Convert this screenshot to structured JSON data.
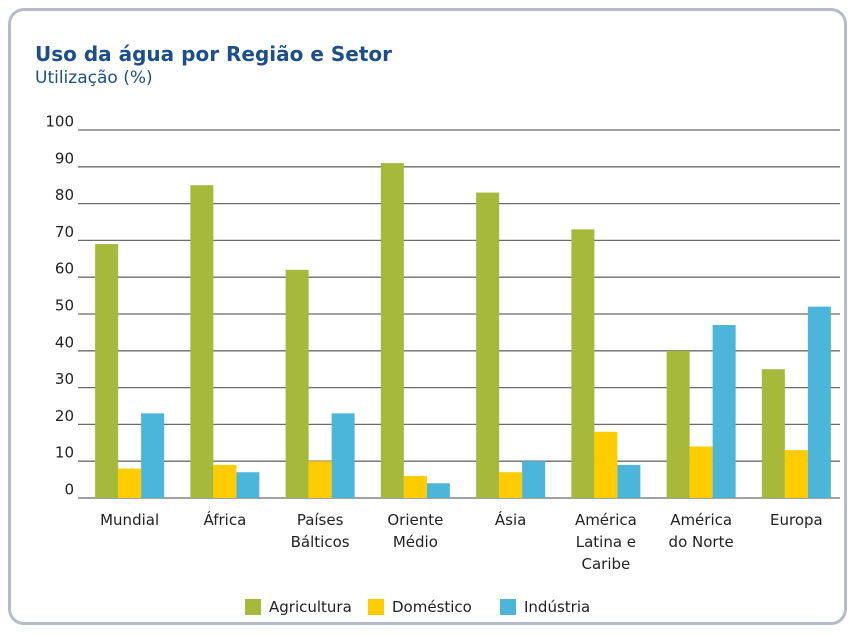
{
  "chart_data": {
    "type": "bar",
    "title": "Uso da água por Região e Setor",
    "subtitle": "Utilização (%)",
    "categories": [
      "Mundial",
      "África",
      "Países Bálticos",
      "Oriente Médio",
      "Ásia",
      "América Latina e Caribe",
      "América do Norte",
      "Europa"
    ],
    "series": [
      {
        "name": "Agricultura",
        "color": "#a7b93a",
        "values": [
          69,
          85,
          62,
          91,
          83,
          73,
          40,
          35
        ]
      },
      {
        "name": "Doméstico",
        "color": "#ffcc00",
        "values": [
          8,
          9,
          10,
          6,
          7,
          18,
          14,
          13
        ]
      },
      {
        "name": "Indústria",
        "color": "#4cb5da",
        "values": [
          23,
          7,
          23,
          4,
          10,
          9,
          47,
          52
        ]
      }
    ],
    "ylim": [
      0,
      100
    ],
    "yticks": [
      0,
      10,
      20,
      30,
      40,
      50,
      60,
      70,
      80,
      90,
      100
    ],
    "grid": true,
    "legend": "bottom"
  }
}
